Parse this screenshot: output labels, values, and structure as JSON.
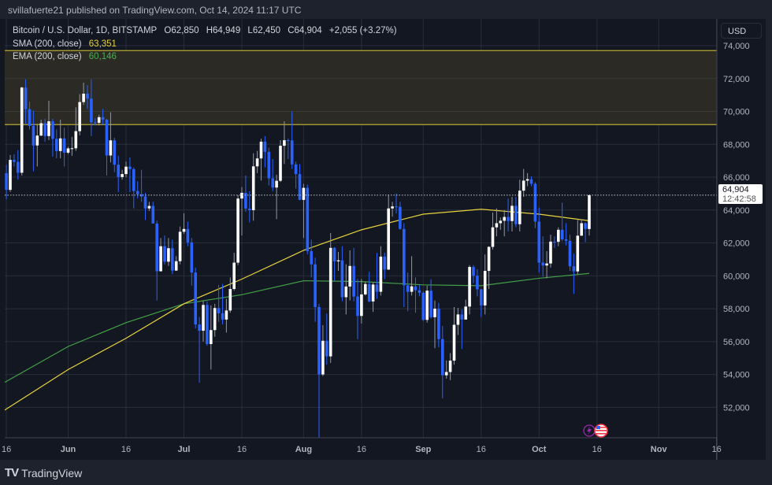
{
  "header": {
    "publish_line": "svillafuerte21 published on TradingView.com, Oct 14, 2024 11:17 UTC"
  },
  "legend": {
    "symbol": "Bitcoin / U.S. Dollar, 1D, BITSTAMP",
    "open": "O62,850",
    "high": "H64,949",
    "low": "L62,450",
    "close": "C64,904",
    "change": "+2,055 (+3.27%)",
    "sma_label": "SMA (200, close)",
    "sma_value": "63,351",
    "ema_label": "EMA (200, close)",
    "ema_value": "60,146"
  },
  "price_axis": {
    "currency": "USD",
    "last_price": "64,904",
    "countdown": "12:42:58"
  },
  "footer": {
    "brand": "TradingView",
    "logo_glyph": "TV"
  },
  "colors": {
    "background": "#131722",
    "up": "#ffffff",
    "down": "#2962ff",
    "sma": "#e7d33c",
    "ema": "#43a047",
    "zone": "#b9a830",
    "grid": "#2a2e39"
  },
  "icons": [
    "lightning-event-icon",
    "us-flag-event-icon",
    "tradingview-logo-icon"
  ],
  "chart_data": {
    "type": "candlestick",
    "title": "Bitcoin / U.S. Dollar, 1D, BITSTAMP",
    "ylim": [
      50400,
      74700
    ],
    "yticks": [
      52000,
      54000,
      56000,
      58000,
      60000,
      62000,
      64000,
      66000,
      68000,
      70000,
      72000,
      74000
    ],
    "xticks": [
      [
        "2024-05-16",
        "16"
      ],
      [
        "2024-06-01",
        "Jun"
      ],
      [
        "2024-06-16",
        "16"
      ],
      [
        "2024-07-01",
        "Jul"
      ],
      [
        "2024-07-16",
        "16"
      ],
      [
        "2024-08-01",
        "Aug"
      ],
      [
        "2024-08-16",
        "16"
      ],
      [
        "2024-09-01",
        "Sep"
      ],
      [
        "2024-09-16",
        "16"
      ],
      [
        "2024-10-01",
        "Oct"
      ],
      [
        "2024-10-16",
        "16"
      ],
      [
        "2024-11-01",
        "Nov"
      ],
      [
        "2024-11-16",
        "16"
      ]
    ],
    "grid": true,
    "zone": [
      69200,
      73700
    ],
    "last_price": 64904,
    "sma": [
      [
        "2024-05-15",
        51750
      ],
      [
        "2024-06-01",
        54300
      ],
      [
        "2024-06-16",
        56200
      ],
      [
        "2024-07-01",
        58300
      ],
      [
        "2024-07-16",
        59800
      ],
      [
        "2024-08-01",
        61550
      ],
      [
        "2024-08-16",
        62800
      ],
      [
        "2024-09-01",
        63750
      ],
      [
        "2024-09-16",
        64050
      ],
      [
        "2024-10-01",
        63750
      ],
      [
        "2024-10-14",
        63351
      ]
    ],
    "ema": [
      [
        "2024-05-15",
        53450
      ],
      [
        "2024-06-01",
        55700
      ],
      [
        "2024-06-16",
        57150
      ],
      [
        "2024-07-01",
        58300
      ],
      [
        "2024-07-16",
        58850
      ],
      [
        "2024-08-01",
        59700
      ],
      [
        "2024-08-16",
        59650
      ],
      [
        "2024-09-01",
        59450
      ],
      [
        "2024-09-16",
        59400
      ],
      [
        "2024-10-01",
        59850
      ],
      [
        "2024-10-14",
        60146
      ]
    ],
    "candles": [
      [
        "2024-05-14",
        62900,
        63100,
        61200,
        61550
      ],
      [
        "2024-05-15",
        61550,
        66500,
        61350,
        66250
      ],
      [
        "2024-05-16",
        66250,
        66750,
        64650,
        65230
      ],
      [
        "2024-05-17",
        65230,
        67350,
        65100,
        67050
      ],
      [
        "2024-05-18",
        67050,
        67400,
        66650,
        66930
      ],
      [
        "2024-05-19",
        66930,
        67650,
        65850,
        66270
      ],
      [
        "2024-05-20",
        66270,
        71500,
        66100,
        71450
      ],
      [
        "2024-05-21",
        71450,
        71950,
        69250,
        70140
      ],
      [
        "2024-05-22",
        70140,
        70600,
        68900,
        69120
      ],
      [
        "2024-05-23",
        69120,
        70050,
        66350,
        67930
      ],
      [
        "2024-05-24",
        67930,
        69250,
        66650,
        68530
      ],
      [
        "2024-05-25",
        68530,
        69500,
        68500,
        69280
      ],
      [
        "2024-05-26",
        69280,
        69550,
        68150,
        68500
      ],
      [
        "2024-05-27",
        68500,
        70650,
        68250,
        69400
      ],
      [
        "2024-05-28",
        69400,
        69550,
        67250,
        68330
      ],
      [
        "2024-05-29",
        68330,
        68900,
        67150,
        67590
      ],
      [
        "2024-05-30",
        67590,
        69500,
        67150,
        68360
      ],
      [
        "2024-05-31",
        68360,
        69000,
        66650,
        67490
      ],
      [
        "2024-06-01",
        67490,
        67850,
        67400,
        67750
      ],
      [
        "2024-06-02",
        67750,
        68450,
        67300,
        67760
      ],
      [
        "2024-06-03",
        67760,
        70250,
        67600,
        68800
      ],
      [
        "2024-06-04",
        68800,
        71050,
        68550,
        70570
      ],
      [
        "2024-06-05",
        70570,
        71750,
        70400,
        71080
      ],
      [
        "2024-06-06",
        71080,
        71600,
        70150,
        70780
      ],
      [
        "2024-06-07",
        70780,
        71950,
        68500,
        69340
      ],
      [
        "2024-06-08",
        69340,
        69600,
        69150,
        69310
      ],
      [
        "2024-06-09",
        69310,
        69800,
        69150,
        69650
      ],
      [
        "2024-06-10",
        69650,
        70150,
        69200,
        69500
      ],
      [
        "2024-06-11",
        69500,
        69550,
        66100,
        67320
      ],
      [
        "2024-06-12",
        67320,
        69950,
        66900,
        68240
      ],
      [
        "2024-06-13",
        68240,
        68400,
        66300,
        66760
      ],
      [
        "2024-06-14",
        66760,
        67300,
        65100,
        66010
      ],
      [
        "2024-06-15",
        66010,
        66450,
        65850,
        66190
      ],
      [
        "2024-06-16",
        66190,
        66950,
        66000,
        66640
      ],
      [
        "2024-06-17",
        66640,
        67200,
        65100,
        66490
      ],
      [
        "2024-06-18",
        66490,
        66600,
        64100,
        65160
      ],
      [
        "2024-06-19",
        65160,
        65750,
        64700,
        64960
      ],
      [
        "2024-06-20",
        64960,
        66450,
        64500,
        64830
      ],
      [
        "2024-06-21",
        64830,
        65050,
        63400,
        64100
      ],
      [
        "2024-06-22",
        64100,
        64500,
        63950,
        64250
      ],
      [
        "2024-06-23",
        64250,
        64500,
        63200,
        63180
      ],
      [
        "2024-06-24",
        63180,
        63350,
        58500,
        60280
      ],
      [
        "2024-06-25",
        60280,
        62300,
        60250,
        61800
      ],
      [
        "2024-06-26",
        61800,
        62450,
        60700,
        60860
      ],
      [
        "2024-06-27",
        60860,
        62300,
        60600,
        61680
      ],
      [
        "2024-06-28",
        61680,
        62200,
        60100,
        60320
      ],
      [
        "2024-06-29",
        60320,
        61200,
        60300,
        60890
      ],
      [
        "2024-06-30",
        60890,
        63000,
        60700,
        62680
      ],
      [
        "2024-07-01",
        62680,
        63800,
        62550,
        62850
      ],
      [
        "2024-07-02",
        62850,
        63300,
        61800,
        62030
      ],
      [
        "2024-07-03",
        62030,
        62300,
        59400,
        60200
      ],
      [
        "2024-07-04",
        60200,
        60500,
        56800,
        57040
      ],
      [
        "2024-07-05",
        57040,
        57500,
        53500,
        56660
      ],
      [
        "2024-07-06",
        56660,
        58500,
        56000,
        58230
      ],
      [
        "2024-07-07",
        58230,
        58450,
        55750,
        55850
      ],
      [
        "2024-07-08",
        55850,
        58200,
        54300,
        56700
      ],
      [
        "2024-07-09",
        56700,
        58300,
        56300,
        58040
      ],
      [
        "2024-07-10",
        58040,
        59450,
        57200,
        57720
      ],
      [
        "2024-07-11",
        57720,
        59500,
        57050,
        57340
      ],
      [
        "2024-07-12",
        57340,
        58600,
        56550,
        57890
      ],
      [
        "2024-07-13",
        57890,
        59900,
        57750,
        59200
      ],
      [
        "2024-07-14",
        59200,
        61400,
        59100,
        60800
      ],
      [
        "2024-07-15",
        60800,
        64900,
        60650,
        64700
      ],
      [
        "2024-07-16",
        64700,
        65400,
        62450,
        65050
      ],
      [
        "2024-07-17",
        65050,
        66100,
        63900,
        64090
      ],
      [
        "2024-07-18",
        64090,
        65150,
        63250,
        63990
      ],
      [
        "2024-07-19",
        63990,
        67450,
        63350,
        66660
      ],
      [
        "2024-07-20",
        66660,
        67600,
        66250,
        67140
      ],
      [
        "2024-07-21",
        67140,
        68350,
        65800,
        68160
      ],
      [
        "2024-07-22",
        68160,
        68500,
        66600,
        67540
      ],
      [
        "2024-07-23",
        67540,
        67800,
        65500,
        65930
      ],
      [
        "2024-07-24",
        65930,
        67100,
        65150,
        65370
      ],
      [
        "2024-07-25",
        65370,
        66150,
        63450,
        65780
      ],
      [
        "2024-07-26",
        65780,
        68250,
        65700,
        67910
      ],
      [
        "2024-07-27",
        67910,
        69400,
        66800,
        68250
      ],
      [
        "2024-07-28",
        68250,
        68350,
        67100,
        68240
      ],
      [
        "2024-07-29",
        68240,
        70000,
        66500,
        66780
      ],
      [
        "2024-07-30",
        66780,
        66950,
        65300,
        66190
      ],
      [
        "2024-07-31",
        66190,
        66800,
        64600,
        64620
      ],
      [
        "2024-08-01",
        64620,
        65600,
        62300,
        65350
      ],
      [
        "2024-08-02",
        65350,
        65550,
        61300,
        61500
      ],
      [
        "2024-08-03",
        61500,
        62200,
        59900,
        60700
      ],
      [
        "2024-08-04",
        60700,
        61100,
        57200,
        58100
      ],
      [
        "2024-08-05",
        58100,
        58300,
        49100,
        54000
      ],
      [
        "2024-08-06",
        54000,
        57000,
        53900,
        56050
      ],
      [
        "2024-08-07",
        56050,
        57700,
        54600,
        55100
      ],
      [
        "2024-08-08",
        55100,
        62600,
        54700,
        61700
      ],
      [
        "2024-08-09",
        61700,
        61750,
        59700,
        60880
      ],
      [
        "2024-08-10",
        60880,
        61450,
        60300,
        60940
      ],
      [
        "2024-08-11",
        60940,
        61800,
        58450,
        58700
      ],
      [
        "2024-08-12",
        58700,
        60700,
        57650,
        59350
      ],
      [
        "2024-08-13",
        59350,
        61550,
        58500,
        60600
      ],
      [
        "2024-08-14",
        60600,
        61700,
        58450,
        58740
      ],
      [
        "2024-08-15",
        58740,
        59800,
        56150,
        57560
      ],
      [
        "2024-08-16",
        57560,
        59800,
        57100,
        58870
      ],
      [
        "2024-08-17",
        58870,
        59650,
        58800,
        59500
      ],
      [
        "2024-08-18",
        59500,
        60250,
        58400,
        58440
      ],
      [
        "2024-08-19",
        58440,
        59600,
        57800,
        59470
      ],
      [
        "2024-08-20",
        59470,
        61400,
        58600,
        59030
      ],
      [
        "2024-08-21",
        59030,
        61800,
        58800,
        61170
      ],
      [
        "2024-08-22",
        61170,
        61400,
        59800,
        60380
      ],
      [
        "2024-08-23",
        60380,
        64950,
        60350,
        64100
      ],
      [
        "2024-08-24",
        64100,
        64500,
        63600,
        64220
      ],
      [
        "2024-08-25",
        64220,
        65000,
        63800,
        64200
      ],
      [
        "2024-08-26",
        64200,
        64500,
        62800,
        62850
      ],
      [
        "2024-08-27",
        62850,
        63200,
        58100,
        59420
      ],
      [
        "2024-08-28",
        59420,
        60200,
        57850,
        59030
      ],
      [
        "2024-08-29",
        59030,
        61200,
        58800,
        59360
      ],
      [
        "2024-08-30",
        59360,
        59900,
        57750,
        59120
      ],
      [
        "2024-08-31",
        59120,
        59450,
        58750,
        58970
      ],
      [
        "2024-09-01",
        58970,
        59050,
        57250,
        57320
      ],
      [
        "2024-09-02",
        57320,
        59400,
        57150,
        59100
      ],
      [
        "2024-09-03",
        59100,
        59800,
        57400,
        57480
      ],
      [
        "2024-09-04",
        57480,
        58500,
        55600,
        58000
      ],
      [
        "2024-09-05",
        58000,
        58350,
        55650,
        56150
      ],
      [
        "2024-09-06",
        56150,
        56950,
        52550,
        53950
      ],
      [
        "2024-09-07",
        53950,
        54850,
        53750,
        54150
      ],
      [
        "2024-09-08",
        54150,
        55300,
        53650,
        54840
      ],
      [
        "2024-09-09",
        54840,
        58100,
        54600,
        57020
      ],
      [
        "2024-09-10",
        57020,
        58050,
        56400,
        57650
      ],
      [
        "2024-09-11",
        57650,
        57950,
        55550,
        57340
      ],
      [
        "2024-09-12",
        57340,
        58550,
        57350,
        58130
      ],
      [
        "2024-09-13",
        58130,
        60650,
        57650,
        60540
      ],
      [
        "2024-09-14",
        60540,
        60650,
        59550,
        60000
      ],
      [
        "2024-09-15",
        60000,
        60400,
        58750,
        59180
      ],
      [
        "2024-09-16",
        59180,
        59200,
        57500,
        58200
      ],
      [
        "2024-09-17",
        58200,
        61300,
        57650,
        60300
      ],
      [
        "2024-09-18",
        60300,
        61800,
        59200,
        61760
      ],
      [
        "2024-09-19",
        61760,
        63850,
        61600,
        62950
      ],
      [
        "2024-09-20",
        62950,
        64100,
        62400,
        63200
      ],
      [
        "2024-09-21",
        63200,
        63550,
        62800,
        63350
      ],
      [
        "2024-09-22",
        63350,
        64000,
        62400,
        63580
      ],
      [
        "2024-09-23",
        63580,
        64700,
        62700,
        63330
      ],
      [
        "2024-09-24",
        63330,
        64800,
        62700,
        64260
      ],
      [
        "2024-09-25",
        64260,
        64800,
        62950,
        63140
      ],
      [
        "2024-09-26",
        63140,
        65850,
        62700,
        65180
      ],
      [
        "2024-09-27",
        65180,
        66500,
        64800,
        65790
      ],
      [
        "2024-09-28",
        65790,
        66250,
        65450,
        65880
      ],
      [
        "2024-09-29",
        65880,
        66050,
        65450,
        65600
      ],
      [
        "2024-09-30",
        65600,
        65700,
        62900,
        63300
      ],
      [
        "2024-10-01",
        63300,
        64150,
        60200,
        60800
      ],
      [
        "2024-10-02",
        60800,
        62400,
        59950,
        60630
      ],
      [
        "2024-10-03",
        60630,
        61500,
        59850,
        60750
      ],
      [
        "2024-10-04",
        60750,
        62500,
        60500,
        62080
      ],
      [
        "2024-10-05",
        62080,
        62400,
        61700,
        62070
      ],
      [
        "2024-10-06",
        62070,
        62950,
        61800,
        62800
      ],
      [
        "2024-10-07",
        62800,
        64450,
        62100,
        62220
      ],
      [
        "2024-10-08",
        62220,
        63200,
        61850,
        62130
      ],
      [
        "2024-10-09",
        62130,
        62500,
        60300,
        60580
      ],
      [
        "2024-10-10",
        60580,
        61350,
        58900,
        60270
      ],
      [
        "2024-10-11",
        60270,
        63400,
        60100,
        62440
      ],
      [
        "2024-10-12",
        62440,
        63450,
        62450,
        63200
      ],
      [
        "2024-10-13",
        63200,
        63250,
        62050,
        62850
      ],
      [
        "2024-10-14",
        62850,
        64949,
        62450,
        64904
      ]
    ]
  }
}
